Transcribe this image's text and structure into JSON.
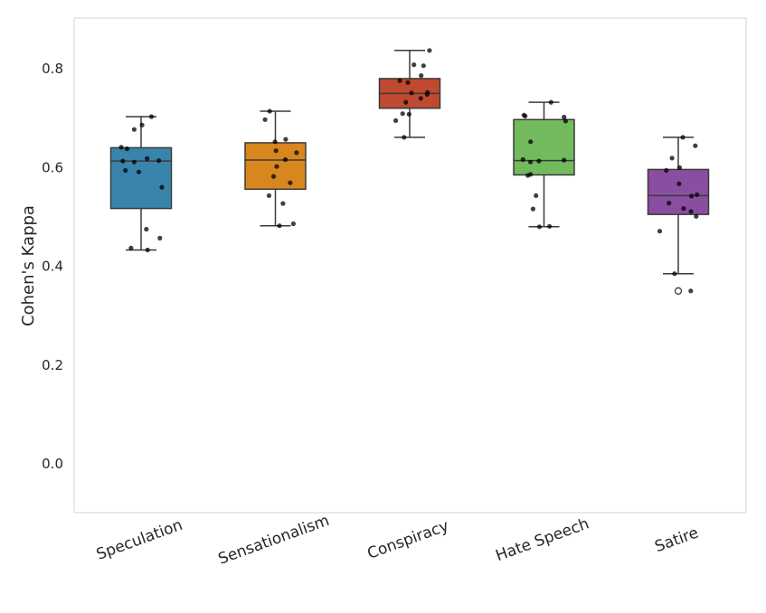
{
  "chart_data": {
    "type": "box",
    "title": "",
    "xlabel": "",
    "ylabel": "Cohen's Kappa",
    "ylim": [
      -0.1,
      0.9
    ],
    "yticks": [
      0.0,
      0.2,
      0.4,
      0.6,
      0.8
    ],
    "ytick_labels": [
      "0.0",
      "0.2",
      "0.4",
      "0.6",
      "0.8"
    ],
    "grid": false,
    "categories": [
      "Speculation",
      "Sensationalism",
      "Conspiracy",
      "Hate Speech",
      "Satire"
    ],
    "colors": [
      "#3a84ab",
      "#d8861e",
      "#bf4a2f",
      "#72ba5d",
      "#8a4ea1"
    ],
    "boxes": [
      {
        "name": "Speculation",
        "whisker_low": 0.433,
        "q1": 0.517,
        "median": 0.613,
        "q3": 0.64,
        "whisker_high": 0.703,
        "outliers": [],
        "points": [
          0.703,
          0.686,
          0.677,
          0.641,
          0.638,
          0.618,
          0.613,
          0.614,
          0.611,
          0.594,
          0.591,
          0.56,
          0.475,
          0.457,
          0.437,
          0.433
        ]
      },
      {
        "name": "Sensationalism",
        "whisker_low": 0.482,
        "q1": 0.556,
        "median": 0.615,
        "q3": 0.65,
        "whisker_high": 0.714,
        "outliers": [],
        "points": [
          0.714,
          0.697,
          0.657,
          0.652,
          0.634,
          0.63,
          0.616,
          0.602,
          0.582,
          0.569,
          0.543,
          0.527,
          0.486,
          0.482
        ]
      },
      {
        "name": "Conspiracy",
        "whisker_low": 0.661,
        "q1": 0.72,
        "median": 0.75,
        "q3": 0.78,
        "whisker_high": 0.837,
        "outliers": [],
        "points": [
          0.837,
          0.808,
          0.806,
          0.786,
          0.776,
          0.772,
          0.752,
          0.751,
          0.748,
          0.74,
          0.732,
          0.709,
          0.708,
          0.695,
          0.661
        ]
      },
      {
        "name": "Hate Speech",
        "whisker_low": 0.48,
        "q1": 0.585,
        "median": 0.614,
        "q3": 0.697,
        "whisker_high": 0.732,
        "outliers": [],
        "points": [
          0.732,
          0.706,
          0.704,
          0.702,
          0.694,
          0.652,
          0.616,
          0.615,
          0.613,
          0.611,
          0.586,
          0.584,
          0.543,
          0.516,
          0.481,
          0.48
        ]
      },
      {
        "name": "Satire",
        "whisker_low": 0.385,
        "q1": 0.505,
        "median": 0.543,
        "q3": 0.596,
        "whisker_high": 0.661,
        "outliers": [
          0.35
        ],
        "points": [
          0.661,
          0.644,
          0.619,
          0.6,
          0.594,
          0.567,
          0.545,
          0.542,
          0.528,
          0.517,
          0.511,
          0.501,
          0.471,
          0.385,
          0.35
        ]
      }
    ]
  }
}
